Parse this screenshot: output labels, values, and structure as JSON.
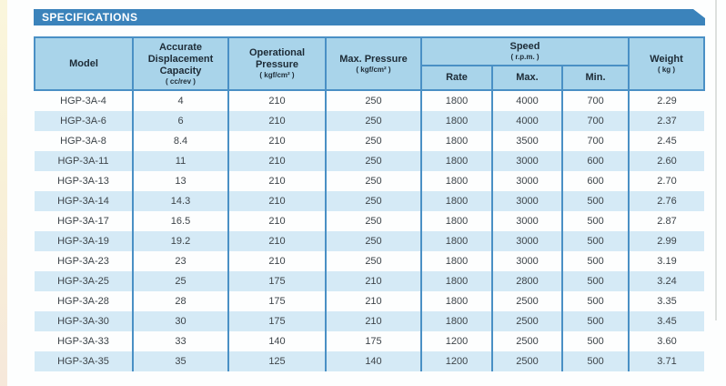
{
  "banner": {
    "label": "SPECIFICATIONS"
  },
  "colors": {
    "banner_bg": "#3b83bb",
    "header_bg": "#a9d4ea",
    "stripe_bg": "#d5eaf6",
    "border": "#4a90c5",
    "header_text": "#1d2b36",
    "body_text": "#3d4449",
    "page_edge": "#f8f3d9"
  },
  "table": {
    "headers": {
      "model": {
        "title": "Model"
      },
      "capacity": {
        "title": "Accurate Displacement Capacity",
        "unit": "( cc/rev )"
      },
      "operational_pressure": {
        "title": "Operational Pressure",
        "unit": "( kgf/cm² )"
      },
      "max_pressure": {
        "title": "Max. Pressure",
        "unit": "( kgf/cm² )"
      },
      "speed": {
        "title": "Speed",
        "unit": "( r.p.m. )",
        "sub": {
          "rate": "Rate",
          "max": "Max.",
          "min": "Min."
        }
      },
      "weight": {
        "title": "Weight",
        "unit": "( kg )"
      }
    },
    "rows": [
      [
        "HGP-3A-4",
        "4",
        "210",
        "250",
        "1800",
        "4000",
        "700",
        "2.29"
      ],
      [
        "HGP-3A-6",
        "6",
        "210",
        "250",
        "1800",
        "4000",
        "700",
        "2.37"
      ],
      [
        "HGP-3A-8",
        "8.4",
        "210",
        "250",
        "1800",
        "3500",
        "700",
        "2.45"
      ],
      [
        "HGP-3A-11",
        "11",
        "210",
        "250",
        "1800",
        "3000",
        "600",
        "2.60"
      ],
      [
        "HGP-3A-13",
        "13",
        "210",
        "250",
        "1800",
        "3000",
        "600",
        "2.70"
      ],
      [
        "HGP-3A-14",
        "14.3",
        "210",
        "250",
        "1800",
        "3000",
        "500",
        "2.76"
      ],
      [
        "HGP-3A-17",
        "16.5",
        "210",
        "250",
        "1800",
        "3000",
        "500",
        "2.87"
      ],
      [
        "HGP-3A-19",
        "19.2",
        "210",
        "250",
        "1800",
        "3000",
        "500",
        "2.99"
      ],
      [
        "HGP-3A-23",
        "23",
        "210",
        "250",
        "1800",
        "3000",
        "500",
        "3.19"
      ],
      [
        "HGP-3A-25",
        "25",
        "175",
        "210",
        "1800",
        "2800",
        "500",
        "3.24"
      ],
      [
        "HGP-3A-28",
        "28",
        "175",
        "210",
        "1800",
        "2500",
        "500",
        "3.35"
      ],
      [
        "HGP-3A-30",
        "30",
        "175",
        "210",
        "1800",
        "2500",
        "500",
        "3.45"
      ],
      [
        "HGP-3A-33",
        "33",
        "140",
        "175",
        "1200",
        "2500",
        "500",
        "3.60"
      ],
      [
        "HGP-3A-35",
        "35",
        "125",
        "140",
        "1200",
        "2500",
        "500",
        "3.71"
      ]
    ]
  }
}
